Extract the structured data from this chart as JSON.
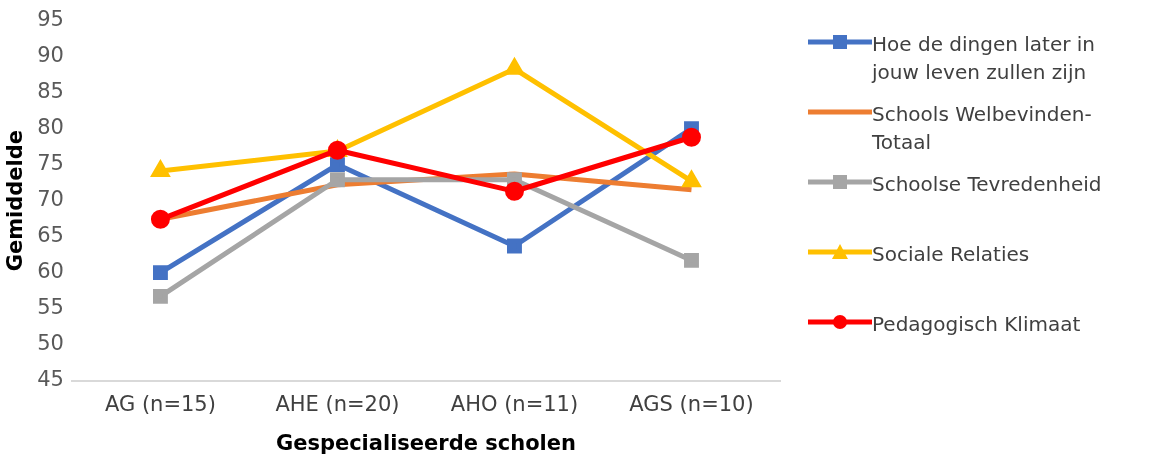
{
  "chart_data": {
    "type": "line",
    "xlabel": "Gespecialiseerde scholen",
    "ylabel": "Gemiddelde",
    "categories": [
      "AG (n=15)",
      "AHE (n=20)",
      "AHO (n=11)",
      "AGS (n=10)"
    ],
    "ylim": [
      45,
      95
    ],
    "yticks": [
      45,
      50,
      55,
      60,
      65,
      70,
      75,
      80,
      85,
      90,
      95
    ],
    "grid": false,
    "legend": "right",
    "series": [
      {
        "name": "Hoe de dingen later in jouw leven zullen zijn",
        "color": "#4472c4",
        "marker": "square",
        "values": [
          60,
          75,
          63.7,
          80
        ]
      },
      {
        "name": "Schools Welbevinden-Totaal",
        "color": "#ed7d31",
        "marker": "none",
        "values": [
          67.4,
          72.2,
          73.7,
          71.5
        ]
      },
      {
        "name": "Schoolse Tevredenheid",
        "color": "#a5a5a5",
        "marker": "square",
        "values": [
          56.7,
          72.9,
          72.9,
          61.7
        ]
      },
      {
        "name": "Sociale Relaties",
        "color": "#ffc000",
        "marker": "triangle",
        "values": [
          74.1,
          76.9,
          88.3,
          72.7
        ]
      },
      {
        "name": "Pedagogisch Klimaat",
        "color": "#ff0000",
        "marker": "circle",
        "values": [
          67.4,
          77,
          71.3,
          78.8
        ]
      }
    ]
  }
}
